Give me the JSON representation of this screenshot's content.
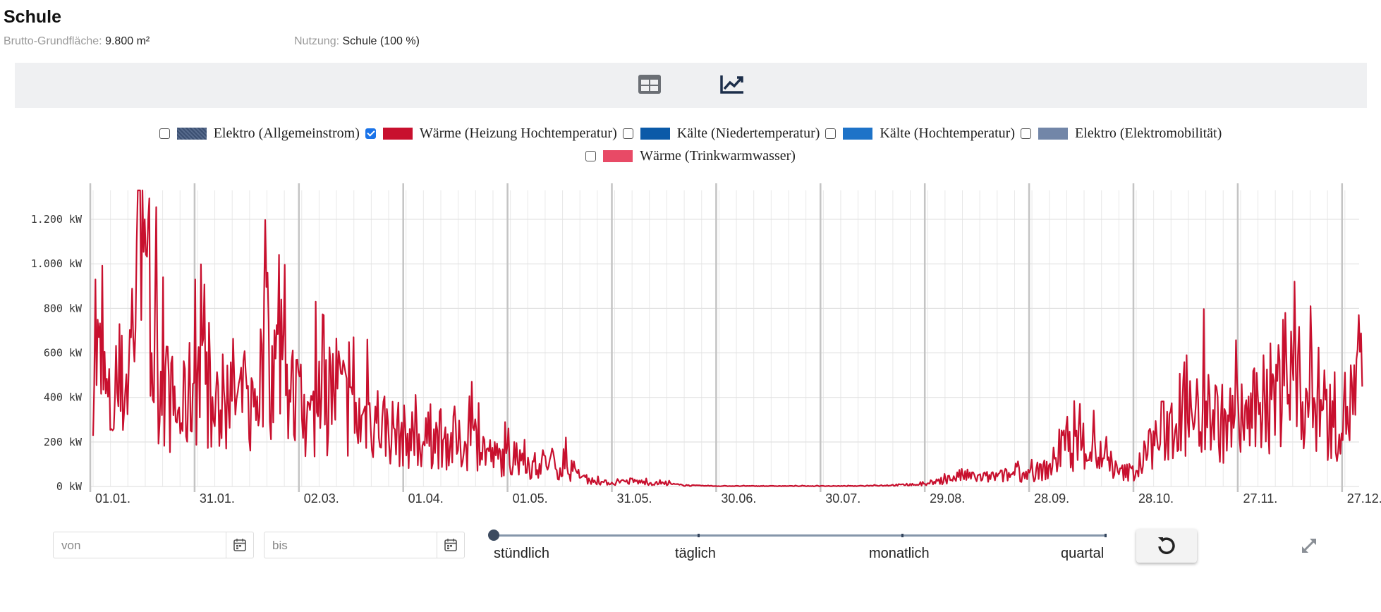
{
  "header": {
    "title": "Schule",
    "area_label": "Brutto-Grundfläche:",
    "area_value": "9.800 m²",
    "usage_label": "Nutzung:",
    "usage_value": "Schule (100 %)"
  },
  "toolbar": {
    "table_icon": "table-icon",
    "chart_icon": "chart-line-icon"
  },
  "legend": [
    {
      "label": "Elektro (Allgemeinstrom)",
      "checked": false,
      "color": "#4a5d7e"
    },
    {
      "label": "Wärme (Heizung Hochtemperatur)",
      "checked": true,
      "color": "#c8102e"
    },
    {
      "label": "Kälte (Niedertemperatur)",
      "checked": false,
      "color": "#0b5aa8"
    },
    {
      "label": "Kälte (Hochtemperatur)",
      "checked": false,
      "color": "#1e73c8"
    },
    {
      "label": "Elektro (Elektromobilität)",
      "checked": false,
      "color": "#7286a8"
    },
    {
      "label": "Wärme (Trinkwarmwasser)",
      "checked": false,
      "color": "#e84a66"
    }
  ],
  "chart_data": {
    "type": "line",
    "ylabel_unit": "kW",
    "yticks": [
      0,
      200,
      400,
      600,
      800,
      1000,
      1200
    ],
    "ytick_labels": [
      "0 kW",
      "200 kW",
      "400 kW",
      "600 kW",
      "800 kW",
      "1.000 kW",
      "1.200 kW"
    ],
    "ylim": [
      0,
      1330
    ],
    "xticks": [
      {
        "day": 0,
        "label": "01.01."
      },
      {
        "day": 30,
        "label": "31.01."
      },
      {
        "day": 60,
        "label": "02.03."
      },
      {
        "day": 90,
        "label": "01.04."
      },
      {
        "day": 120,
        "label": "01.05."
      },
      {
        "day": 150,
        "label": "31.05."
      },
      {
        "day": 180,
        "label": "30.06."
      },
      {
        "day": 210,
        "label": "30.07."
      },
      {
        "day": 240,
        "label": "29.08."
      },
      {
        "day": 270,
        "label": "28.09."
      },
      {
        "day": 300,
        "label": "28.10."
      },
      {
        "day": 330,
        "label": "27.11."
      },
      {
        "day": 360,
        "label": "27.12."
      }
    ],
    "xlim_days": [
      0,
      365
    ],
    "grid": true,
    "series": [
      {
        "color": "#c8102e",
        "x_days": [
          0,
          5,
          10,
          14,
          15,
          20,
          25,
          30,
          35,
          40,
          45,
          50,
          55,
          58,
          60,
          65,
          70,
          75,
          80,
          85,
          90,
          95,
          100,
          105,
          110,
          115,
          120,
          125,
          130,
          135,
          140,
          145,
          150,
          155,
          160,
          165,
          170,
          175,
          180,
          200,
          220,
          240,
          245,
          250,
          255,
          260,
          265,
          270,
          275,
          280,
          285,
          290,
          295,
          300,
          305,
          310,
          315,
          320,
          325,
          330,
          335,
          340,
          345,
          350,
          355,
          360,
          365
        ],
        "y": [
          650,
          320,
          500,
          1200,
          700,
          450,
          300,
          500,
          300,
          420,
          320,
          600,
          480,
          380,
          280,
          320,
          450,
          280,
          320,
          260,
          220,
          200,
          220,
          180,
          210,
          130,
          120,
          80,
          110,
          80,
          40,
          20,
          15,
          25,
          15,
          12,
          5,
          3,
          2,
          2,
          2,
          10,
          30,
          50,
          40,
          45,
          55,
          60,
          80,
          200,
          180,
          130,
          60,
          70,
          200,
          280,
          300,
          350,
          280,
          300,
          330,
          420,
          480,
          380,
          300,
          330,
          450
        ],
        "peaks": [
          {
            "x_days": 0.5,
            "y": 930
          },
          {
            "x_days": 14.3,
            "y": 1330
          },
          {
            "x_days": 16,
            "y": 1200
          },
          {
            "x_days": 12.5,
            "y": 1100
          },
          {
            "x_days": 20,
            "y": 940
          },
          {
            "x_days": 29.5,
            "y": 930
          },
          {
            "x_days": 50,
            "y": 960
          },
          {
            "x_days": 54,
            "y": 840
          },
          {
            "x_days": 64,
            "y": 830
          },
          {
            "x_days": 75,
            "y": 670
          },
          {
            "x_days": 79,
            "y": 660
          },
          {
            "x_days": 97,
            "y": 370
          },
          {
            "x_days": 104,
            "y": 360
          },
          {
            "x_days": 124,
            "y": 210
          },
          {
            "x_days": 136,
            "y": 220
          },
          {
            "x_days": 343,
            "y": 780
          },
          {
            "x_days": 350,
            "y": 810
          },
          {
            "x_days": 364,
            "y": 770
          }
        ]
      }
    ]
  },
  "filters": {
    "from_placeholder": "von",
    "to_placeholder": "bis"
  },
  "resolution": {
    "options": [
      "stündlich",
      "täglich",
      "monatlich",
      "quartal"
    ],
    "selected": "stündlich"
  },
  "controls": {
    "reset_icon": "reset-icon",
    "expand_icon": "expand-icon"
  }
}
